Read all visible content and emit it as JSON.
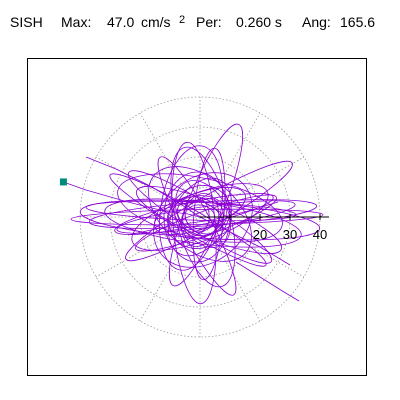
{
  "header": {
    "station": "SISH",
    "max_label": "Max:",
    "max_value": "47.0",
    "max_unit": "cm/s",
    "max_exp": "2",
    "period_label": "Per:",
    "period_value": "0.260 s",
    "angle_label": "Ang:",
    "angle_value": "165.6"
  },
  "colors": {
    "trace": "#8a00d4",
    "grid": "#9a9a9a",
    "axis": "#000000",
    "marker": "#008c7a",
    "frame": "#000000"
  },
  "chart_data": {
    "type": "polar particle-motion hodogram",
    "title": "SISH   Max:   47.0 cm/s2   Per:  0.260 s   Ang: 165.6",
    "units": "cm/s²",
    "max_amplitude": 47.0,
    "period_s": 0.26,
    "angle_deg": 165.6,
    "radial_range": [
      0,
      40
    ],
    "rings": [
      10,
      20,
      30,
      40
    ],
    "ring_labels": [
      "20",
      "30",
      "40"
    ],
    "spoke_angles_deg": [
      0,
      30,
      60,
      90,
      120,
      150,
      180,
      210,
      240,
      270,
      300,
      330
    ],
    "grid": true,
    "peak_marker": {
      "angle_deg": 165.6,
      "radius": 47.0
    },
    "orbits": [
      {
        "a": 42,
        "b": 2.5,
        "rot": 181,
        "cx": -1,
        "cy": 0
      },
      {
        "a": 40,
        "b": 6,
        "rot": 176,
        "cx": 0,
        "cy": -1
      },
      {
        "a": 38,
        "b": 4,
        "rot": 184,
        "cx": 1,
        "cy": 1
      },
      {
        "a": 35,
        "b": 3,
        "rot": 178,
        "cx": -3,
        "cy": 2
      },
      {
        "a": 33,
        "b": 7,
        "rot": 173,
        "cx": 1,
        "cy": -2
      },
      {
        "a": 30,
        "b": 3.5,
        "rot": 188,
        "cx": 2,
        "cy": 0
      },
      {
        "a": 28,
        "b": 10,
        "rot": 168,
        "cx": 0,
        "cy": 3
      },
      {
        "a": 27,
        "b": 4,
        "rot": 192,
        "cx": -2,
        "cy": 1
      },
      {
        "a": 26,
        "b": 6,
        "rot": 158,
        "cx": 3,
        "cy": -1
      },
      {
        "a": 24,
        "b": 8,
        "rot": 200,
        "cx": 0,
        "cy": 0
      },
      {
        "a": 27,
        "b": 7,
        "rot": 95,
        "cx": -2,
        "cy": -2
      },
      {
        "a": 24,
        "b": 9,
        "rot": 105,
        "cx": 1,
        "cy": 0
      },
      {
        "a": 22,
        "b": 5,
        "rot": 85,
        "cx": 3,
        "cy": 1
      },
      {
        "a": 21,
        "b": 10,
        "rot": 80,
        "cx": -3,
        "cy": 3
      },
      {
        "a": 29,
        "b": 6,
        "rot": 68,
        "cx": 2,
        "cy": 4
      },
      {
        "a": 26,
        "b": 5,
        "rot": 118,
        "cx": -1,
        "cy": -3
      },
      {
        "a": 20,
        "b": 12,
        "rot": 140,
        "cx": 0,
        "cy": 1
      },
      {
        "a": 18,
        "b": 14,
        "rot": 40,
        "cx": 1,
        "cy": -1
      },
      {
        "a": 28,
        "b": 5,
        "rot": 148,
        "cx": 0,
        "cy": 0
      },
      {
        "a": 25,
        "b": 4,
        "rot": 20,
        "cx": 2,
        "cy": -2
      },
      {
        "a": 32,
        "b": 5,
        "rot": 210,
        "cx": 3,
        "cy": 2
      },
      {
        "a": 30,
        "b": 4,
        "rot": 150,
        "cx": -4,
        "cy": -1
      },
      {
        "a": 14,
        "b": 9,
        "rot": 60,
        "cx": 0,
        "cy": 0
      },
      {
        "a": 12,
        "b": 8,
        "rot": 120,
        "cx": 1,
        "cy": 1
      },
      {
        "a": 10,
        "b": 7,
        "rot": 10,
        "cx": -1,
        "cy": 0
      },
      {
        "a": 9,
        "b": 6,
        "rot": 75,
        "cx": 0,
        "cy": -1
      },
      {
        "a": 8,
        "b": 5,
        "rot": 155,
        "cx": 0,
        "cy": 0
      },
      {
        "a": 7,
        "b": 6,
        "rot": 30,
        "cx": 1,
        "cy": 0
      },
      {
        "a": 6,
        "b": 4,
        "rot": 100,
        "cx": -1,
        "cy": 1
      },
      {
        "a": 5,
        "b": 4,
        "rot": 170,
        "cx": 0,
        "cy": 0
      },
      {
        "a": 16,
        "b": 6,
        "rot": 200,
        "cx": 0,
        "cy": 2
      },
      {
        "a": 15,
        "b": 11,
        "rot": 90,
        "cx": -1,
        "cy": 0
      },
      {
        "a": 11,
        "b": 10,
        "rot": 45,
        "cx": 0,
        "cy": 0
      }
    ],
    "traces": [
      {
        "points": [
          [
            -46.5,
            12
          ],
          [
            -38,
            9
          ],
          [
            -24,
            5
          ],
          [
            -12,
            2
          ],
          [
            -4,
            1
          ],
          [
            0,
            0
          ]
        ]
      },
      {
        "points": [
          [
            -38,
            20
          ],
          [
            -28,
            16
          ],
          [
            -16,
            10
          ],
          [
            -6,
            4
          ],
          [
            0,
            0
          ],
          [
            8,
            -4
          ],
          [
            20,
            -10
          ],
          [
            30,
            -16
          ]
        ]
      },
      {
        "points": [
          [
            -24,
            -6
          ],
          [
            -10,
            -3
          ],
          [
            4,
            -1
          ],
          [
            16,
            2
          ],
          [
            26,
            5
          ]
        ]
      },
      {
        "points": [
          [
            12,
            -15
          ],
          [
            20,
            -20
          ],
          [
            28,
            -25
          ],
          [
            33,
            -28
          ]
        ]
      }
    ]
  }
}
